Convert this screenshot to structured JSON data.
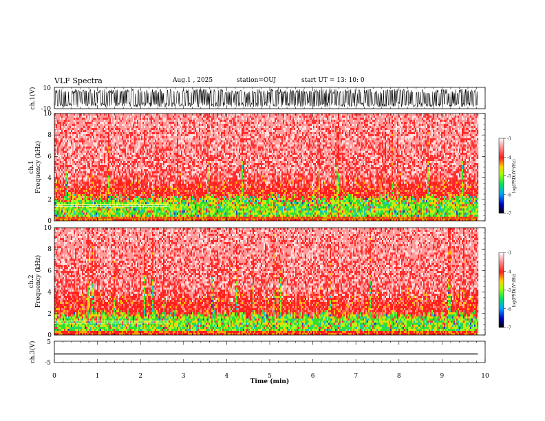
{
  "header": {
    "title": "VLF Spectra",
    "date": "Aug.1   , 2025",
    "station": "station=OUJ",
    "start": "start  UT  =   13: 10: 0"
  },
  "colors": {
    "spec_low": "#000000",
    "spec_mid": "#00d000",
    "spec_high": "#ff2020",
    "spec_top": "#ffffff",
    "waveform": "#000000"
  },
  "chart_data": [
    {
      "type": "line",
      "name": "ch1-waveform",
      "ylabel": "ch.1(V)",
      "ylim": [
        -10,
        10
      ],
      "yticks": [
        "10",
        "-10"
      ],
      "note": "dense noise-like waveform spanning roughly -8 to 8 V over the full 0–9.83 min record"
    },
    {
      "type": "heatmap",
      "name": "ch1-spectrogram",
      "ylabel": "ch.1\nFrequency  (kHz)",
      "ylim": [
        0,
        10
      ],
      "yticks": [
        "0",
        "2",
        "4",
        "6",
        "8",
        "10"
      ],
      "xlim": [
        0,
        9.83
      ],
      "colorbar": {
        "label": "log(PSD)(V²/Hz)",
        "range": [
          -7,
          -3
        ],
        "ticks": [
          "-3",
          "-4",
          "-5",
          "-6",
          "-7"
        ]
      },
      "features": {
        "green_band_khz": [
          0.5,
          2.2
        ],
        "horizontal_line_khz": 1.5,
        "horizontal_line_end_min": 2.65,
        "baseline_line_khz": 0.25
      }
    },
    {
      "type": "heatmap",
      "name": "ch2-spectrogram",
      "ylabel": "ch.2\nFrequency  (kHz)",
      "ylim": [
        0,
        10
      ],
      "yticks": [
        "0",
        "2",
        "4",
        "6",
        "8",
        "10"
      ],
      "xlim": [
        0,
        9.83
      ],
      "colorbar": {
        "label": "log(PSD)(V²/Hz)",
        "range": [
          -7,
          -3
        ],
        "ticks": [
          "-3",
          "-4",
          "-5",
          "-6",
          "-7"
        ]
      },
      "features": {
        "green_band_khz": [
          0.5,
          2.0
        ],
        "horizontal_line_khz": 1.3,
        "horizontal_line_end_min": 2.65
      }
    },
    {
      "type": "line",
      "name": "ch3-trace",
      "ylabel": "ch.3(V)",
      "ylim": [
        -5,
        5
      ],
      "yticks": [
        "5",
        "-5"
      ],
      "values_constant": -1.0
    }
  ],
  "xaxis": {
    "label": "Time  (min)",
    "range": [
      0,
      10
    ],
    "ticks": [
      "0",
      "1",
      "2",
      "3",
      "4",
      "5",
      "6",
      "7",
      "8",
      "9",
      "10"
    ]
  }
}
